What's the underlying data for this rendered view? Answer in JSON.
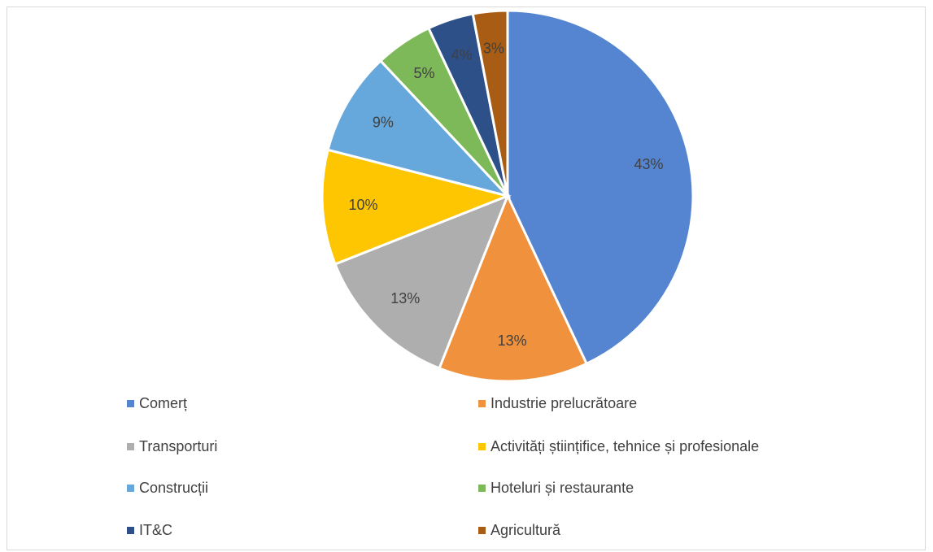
{
  "chart_data": {
    "type": "pie",
    "title": "",
    "legend_position": "bottom",
    "slices": [
      {
        "name": "Comerț",
        "value": 43,
        "label": "43%",
        "color": "#5585d1"
      },
      {
        "name": "Industrie prelucrătoare",
        "value": 13,
        "label": "13%",
        "color": "#f0913d"
      },
      {
        "name": "Transporturi",
        "value": 13,
        "label": "13%",
        "color": "#aeaeae"
      },
      {
        "name": "Activități științifice, tehnice și profesionale",
        "value": 10,
        "label": "10%",
        "color": "#fec600"
      },
      {
        "name": "Construcții",
        "value": 9,
        "label": "9%",
        "color": "#67a8dc"
      },
      {
        "name": "Hoteluri și restaurante",
        "value": 5,
        "label": "5%",
        "color": "#7db958"
      },
      {
        "name": "IT&C",
        "value": 4,
        "label": "4%",
        "color": "#2d5089"
      },
      {
        "name": "Agricultură",
        "value": 3,
        "label": "3%",
        "color": "#a85c14"
      }
    ]
  }
}
